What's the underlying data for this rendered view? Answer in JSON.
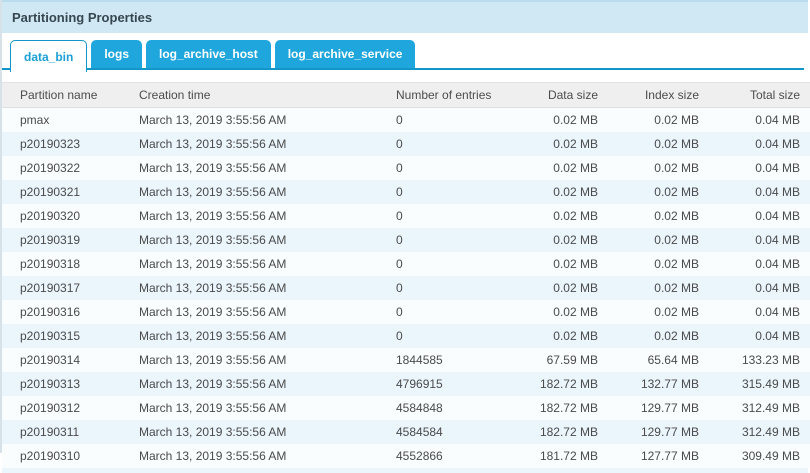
{
  "panel": {
    "title": "Partitioning Properties"
  },
  "tabs": [
    {
      "key": "data_bin",
      "label": "data_bin",
      "active": true
    },
    {
      "key": "logs",
      "label": "logs",
      "active": false
    },
    {
      "key": "log_archive_host",
      "label": "log_archive_host",
      "active": false
    },
    {
      "key": "log_archive_service",
      "label": "log_archive_service",
      "active": false
    }
  ],
  "table": {
    "columns": [
      {
        "key": "partition-name",
        "label": "Partition name"
      },
      {
        "key": "creation-time",
        "label": "Creation time"
      },
      {
        "key": "number-of-entries",
        "label": "Number of entries"
      },
      {
        "key": "data-size",
        "label": "Data size"
      },
      {
        "key": "index-size",
        "label": "Index size"
      },
      {
        "key": "total-size",
        "label": "Total size"
      }
    ],
    "rows": [
      [
        "pmax",
        "March 13, 2019 3:55:56 AM",
        "0",
        "0.02 MB",
        "0.02 MB",
        "0.04 MB"
      ],
      [
        "p20190323",
        "March 13, 2019 3:55:56 AM",
        "0",
        "0.02 MB",
        "0.02 MB",
        "0.04 MB"
      ],
      [
        "p20190322",
        "March 13, 2019 3:55:56 AM",
        "0",
        "0.02 MB",
        "0.02 MB",
        "0.04 MB"
      ],
      [
        "p20190321",
        "March 13, 2019 3:55:56 AM",
        "0",
        "0.02 MB",
        "0.02 MB",
        "0.04 MB"
      ],
      [
        "p20190320",
        "March 13, 2019 3:55:56 AM",
        "0",
        "0.02 MB",
        "0.02 MB",
        "0.04 MB"
      ],
      [
        "p20190319",
        "March 13, 2019 3:55:56 AM",
        "0",
        "0.02 MB",
        "0.02 MB",
        "0.04 MB"
      ],
      [
        "p20190318",
        "March 13, 2019 3:55:56 AM",
        "0",
        "0.02 MB",
        "0.02 MB",
        "0.04 MB"
      ],
      [
        "p20190317",
        "March 13, 2019 3:55:56 AM",
        "0",
        "0.02 MB",
        "0.02 MB",
        "0.04 MB"
      ],
      [
        "p20190316",
        "March 13, 2019 3:55:56 AM",
        "0",
        "0.02 MB",
        "0.02 MB",
        "0.04 MB"
      ],
      [
        "p20190315",
        "March 13, 2019 3:55:56 AM",
        "0",
        "0.02 MB",
        "0.02 MB",
        "0.04 MB"
      ],
      [
        "p20190314",
        "March 13, 2019 3:55:56 AM",
        "1844585",
        "67.59 MB",
        "65.64 MB",
        "133.23 MB"
      ],
      [
        "p20190313",
        "March 13, 2019 3:55:56 AM",
        "4796915",
        "182.72 MB",
        "132.77 MB",
        "315.49 MB"
      ],
      [
        "p20190312",
        "March 13, 2019 3:55:56 AM",
        "4584848",
        "182.72 MB",
        "129.77 MB",
        "312.49 MB"
      ],
      [
        "p20190311",
        "March 13, 2019 3:55:56 AM",
        "4584584",
        "182.72 MB",
        "129.77 MB",
        "312.49 MB"
      ],
      [
        "p20190310",
        "March 13, 2019 3:55:56 AM",
        "4552866",
        "181.72 MB",
        "127.77 MB",
        "309.49 MB"
      ]
    ]
  },
  "colors": {
    "accent-dark": "#1295c9",
    "tab-bg": "#1fa7dd",
    "tab-active-text": "#1b9fd6",
    "titlebar-bg": "#cfe8f4",
    "titlebar-border": "#badcec",
    "title-text": "#37474f",
    "header-bg": "#efefef",
    "header-text": "#4c4c4c",
    "cell-text": "#4a4a4a",
    "row-odd": "#fafdfe",
    "row-even": "#ebf6fc",
    "page-border": "#d6e1e8"
  }
}
